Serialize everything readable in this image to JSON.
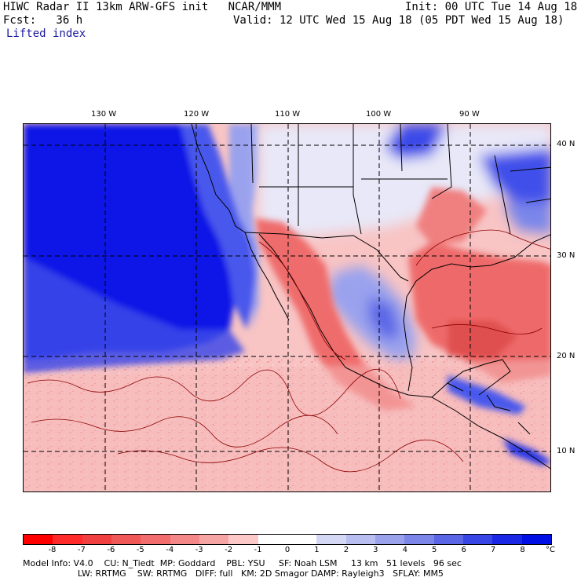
{
  "header": {
    "line1_left": "HIWC Radar II 13km ARW-GFS init   NCAR/MMM",
    "line1_right": "Init: 00 UTC Tue 14 Aug 18",
    "line2_left": "Fcst:   36 h",
    "line2_right": "Valid: 12 UTC Wed 15 Aug 18 (05 PDT Wed 15 Aug 18)",
    "field": "Lifted index"
  },
  "map": {
    "lon_labels": [
      "130 W",
      "120 W",
      "110 W",
      "100 W",
      "90 W"
    ],
    "lat_labels": [
      "40 N",
      "30 N",
      "20 N",
      "10 N"
    ]
  },
  "colorbar": {
    "labels": [
      "-8",
      "-7",
      "-6",
      "-5",
      "-4",
      "-3",
      "-2",
      "-1",
      "0",
      "1",
      "2",
      "3",
      "4",
      "5",
      "6",
      "7",
      "8",
      "°C"
    ],
    "colors": [
      "#ff0000",
      "#ff2a2a",
      "#f04040",
      "#f05858",
      "#f26e6e",
      "#f48888",
      "#f7a4a4",
      "#fcc8c8",
      "#ffffff",
      "#ffffff",
      "#d4d8f4",
      "#b8bef0",
      "#9aa2ec",
      "#7c86e8",
      "#5a66e6",
      "#3846e6",
      "#1a28e6",
      "#0010e4"
    ]
  },
  "footer": {
    "line1": "Model Info: V4.0    CU: N_Tiedt  MP: Goddard    PBL: YSU     SF: Noah LSM     13 km   51 levels   96 sec",
    "line2": "                    LW: RRTMG    SW: RRTMG   DIFF: full   KM: 2D Smagor DAMP: Rayleigh3   SFLAY: MM5"
  }
}
